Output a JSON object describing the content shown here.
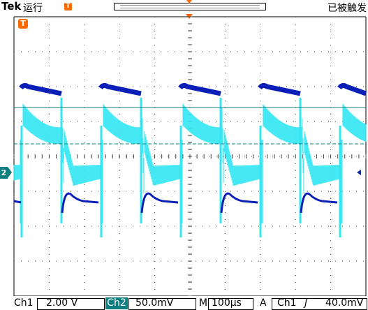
{
  "header": {
    "brand": "Tek",
    "run_status": "运行",
    "trigger_status": "已被触发"
  },
  "markers": {
    "trigger_marker": "T",
    "ch2_ground": "2"
  },
  "readout": {
    "ch1_label": "Ch1",
    "ch1_scale": "2.00 V",
    "ch2_label": "Ch2",
    "ch2_scale": "50.0mV",
    "timebase_label": "M",
    "timebase": "100μs",
    "trigger_mode": "A",
    "trigger_source": "Ch1",
    "trigger_slope": "ʃ",
    "trigger_level": "40.0mV"
  },
  "colors": {
    "ch1_trace": "#0a1fb8",
    "ch2_trace": "#33e6f2",
    "ch2_marker": "#0e7d80",
    "trigger_marker": "#ff6a00",
    "graticule": "#000000"
  }
}
